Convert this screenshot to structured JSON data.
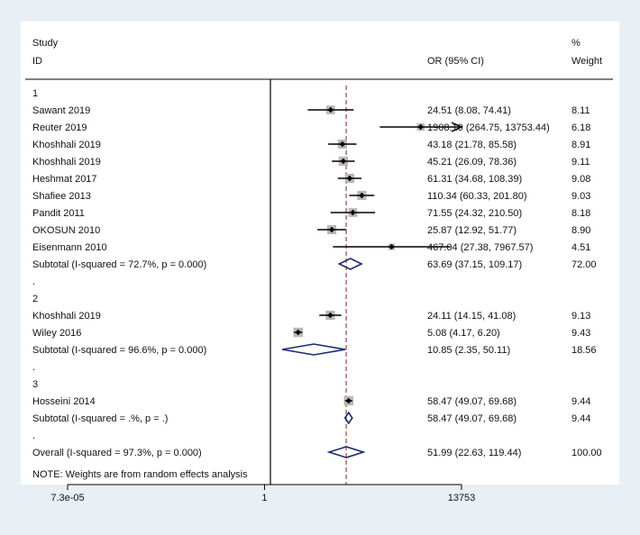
{
  "chart_data": {
    "type": "forest",
    "header": {
      "study_line1": "Study",
      "study_line2": "ID",
      "effect_label": "OR (95% CI)",
      "weight_line1": "%",
      "weight_line2": "Weight"
    },
    "scale": "log",
    "xlim": [
      7.3e-05,
      13753
    ],
    "null_value": 1,
    "pooled_overall": 51.99,
    "ticks": [
      {
        "value": 7.3e-05,
        "label": "7.3e-05"
      },
      {
        "value": 1,
        "label": "1"
      },
      {
        "value": 13753,
        "label": "13753"
      }
    ],
    "rows": [
      {
        "kind": "group",
        "label": "1"
      },
      {
        "kind": "study",
        "label": "Sawant 2019",
        "or": 24.51,
        "lo": 8.08,
        "hi": 74.41,
        "ci": "24.51 (8.08, 74.41)",
        "weight": "8.11",
        "w": 8.11
      },
      {
        "kind": "study",
        "label": "Reuter 2019",
        "or": 1908.19,
        "lo": 264.75,
        "hi": 13753.44,
        "ci": "1908.19 (264.75, 13753.44)",
        "weight": "6.18",
        "w": 6.18,
        "arrow": true
      },
      {
        "kind": "study",
        "label": "Khoshhali 2019",
        "or": 43.18,
        "lo": 21.78,
        "hi": 85.58,
        "ci": "43.18 (21.78, 85.58)",
        "weight": "8.91",
        "w": 8.91
      },
      {
        "kind": "study",
        "label": "Khoshhali 2019",
        "or": 45.21,
        "lo": 26.09,
        "hi": 78.36,
        "ci": "45.21 (26.09, 78.36)",
        "weight": "9.11",
        "w": 9.11
      },
      {
        "kind": "study",
        "label": "Heshmat 2017",
        "or": 61.31,
        "lo": 34.68,
        "hi": 108.39,
        "ci": "61.31 (34.68, 108.39)",
        "weight": "9.08",
        "w": 9.08
      },
      {
        "kind": "study",
        "label": "Shafiee 2013",
        "or": 110.34,
        "lo": 60.33,
        "hi": 201.8,
        "ci": "110.34 (60.33, 201.80)",
        "weight": "9.03",
        "w": 9.03
      },
      {
        "kind": "study",
        "label": "Pandit 2011",
        "or": 71.55,
        "lo": 24.32,
        "hi": 210.5,
        "ci": "71.55 (24.32, 210.50)",
        "weight": "8.18",
        "w": 8.18
      },
      {
        "kind": "study",
        "label": "OKOSUN 2010",
        "or": 25.87,
        "lo": 12.92,
        "hi": 51.77,
        "ci": "25.87 (12.92, 51.77)",
        "weight": "8.90",
        "w": 8.9
      },
      {
        "kind": "study",
        "label": "Eisenmann 2010",
        "or": 467.04,
        "lo": 27.38,
        "hi": 7967.57,
        "ci": "467.04 (27.38, 7967.57)",
        "weight": "4.51",
        "w": 4.51
      },
      {
        "kind": "subtotal",
        "label": "Subtotal  (I-squared = 72.7%, p = 0.000)",
        "or": 63.69,
        "lo": 37.15,
        "hi": 109.17,
        "ci": "63.69 (37.15, 109.17)",
        "weight": "72.00"
      },
      {
        "kind": "spacer",
        "label": "."
      },
      {
        "kind": "group",
        "label": "2"
      },
      {
        "kind": "study",
        "label": "Khoshhali 2019",
        "or": 24.11,
        "lo": 14.15,
        "hi": 41.08,
        "ci": "24.11 (14.15, 41.08)",
        "weight": "9.13",
        "w": 9.13
      },
      {
        "kind": "study",
        "label": "Wiley 2016",
        "or": 5.08,
        "lo": 4.17,
        "hi": 6.2,
        "ci": "5.08 (4.17, 6.20)",
        "weight": "9.43",
        "w": 9.43
      },
      {
        "kind": "subtotal",
        "label": "Subtotal  (I-squared = 96.6%, p = 0.000)",
        "or": 10.85,
        "lo": 2.35,
        "hi": 50.11,
        "ci": "10.85 (2.35, 50.11)",
        "weight": "18.56"
      },
      {
        "kind": "spacer",
        "label": "."
      },
      {
        "kind": "group",
        "label": "3"
      },
      {
        "kind": "study",
        "label": "Hosseini 2014",
        "or": 58.47,
        "lo": 49.07,
        "hi": 69.68,
        "ci": "58.47 (49.07, 69.68)",
        "weight": "9.44",
        "w": 9.44
      },
      {
        "kind": "subtotal",
        "label": "Subtotal  (I-squared = .%, p = .)",
        "or": 58.47,
        "lo": 49.07,
        "hi": 69.68,
        "ci": "58.47 (49.07, 69.68)",
        "weight": "9.44"
      },
      {
        "kind": "spacer",
        "label": "."
      },
      {
        "kind": "subtotal",
        "label": "Overall  (I-squared = 97.3%, p = 0.000)",
        "or": 51.99,
        "lo": 22.63,
        "hi": 119.44,
        "ci": "51.99 (22.63, 119.44)",
        "weight": "100.00"
      }
    ],
    "note": "NOTE: Weights are from random effects analysis",
    "colors": {
      "background": "#e8eff5",
      "panel": "#ffffff",
      "text": "#111111",
      "diamond": "#1a2a6c",
      "box": "#b8b8b8",
      "reference_line": "#a04040",
      "axis": "#000000"
    }
  }
}
